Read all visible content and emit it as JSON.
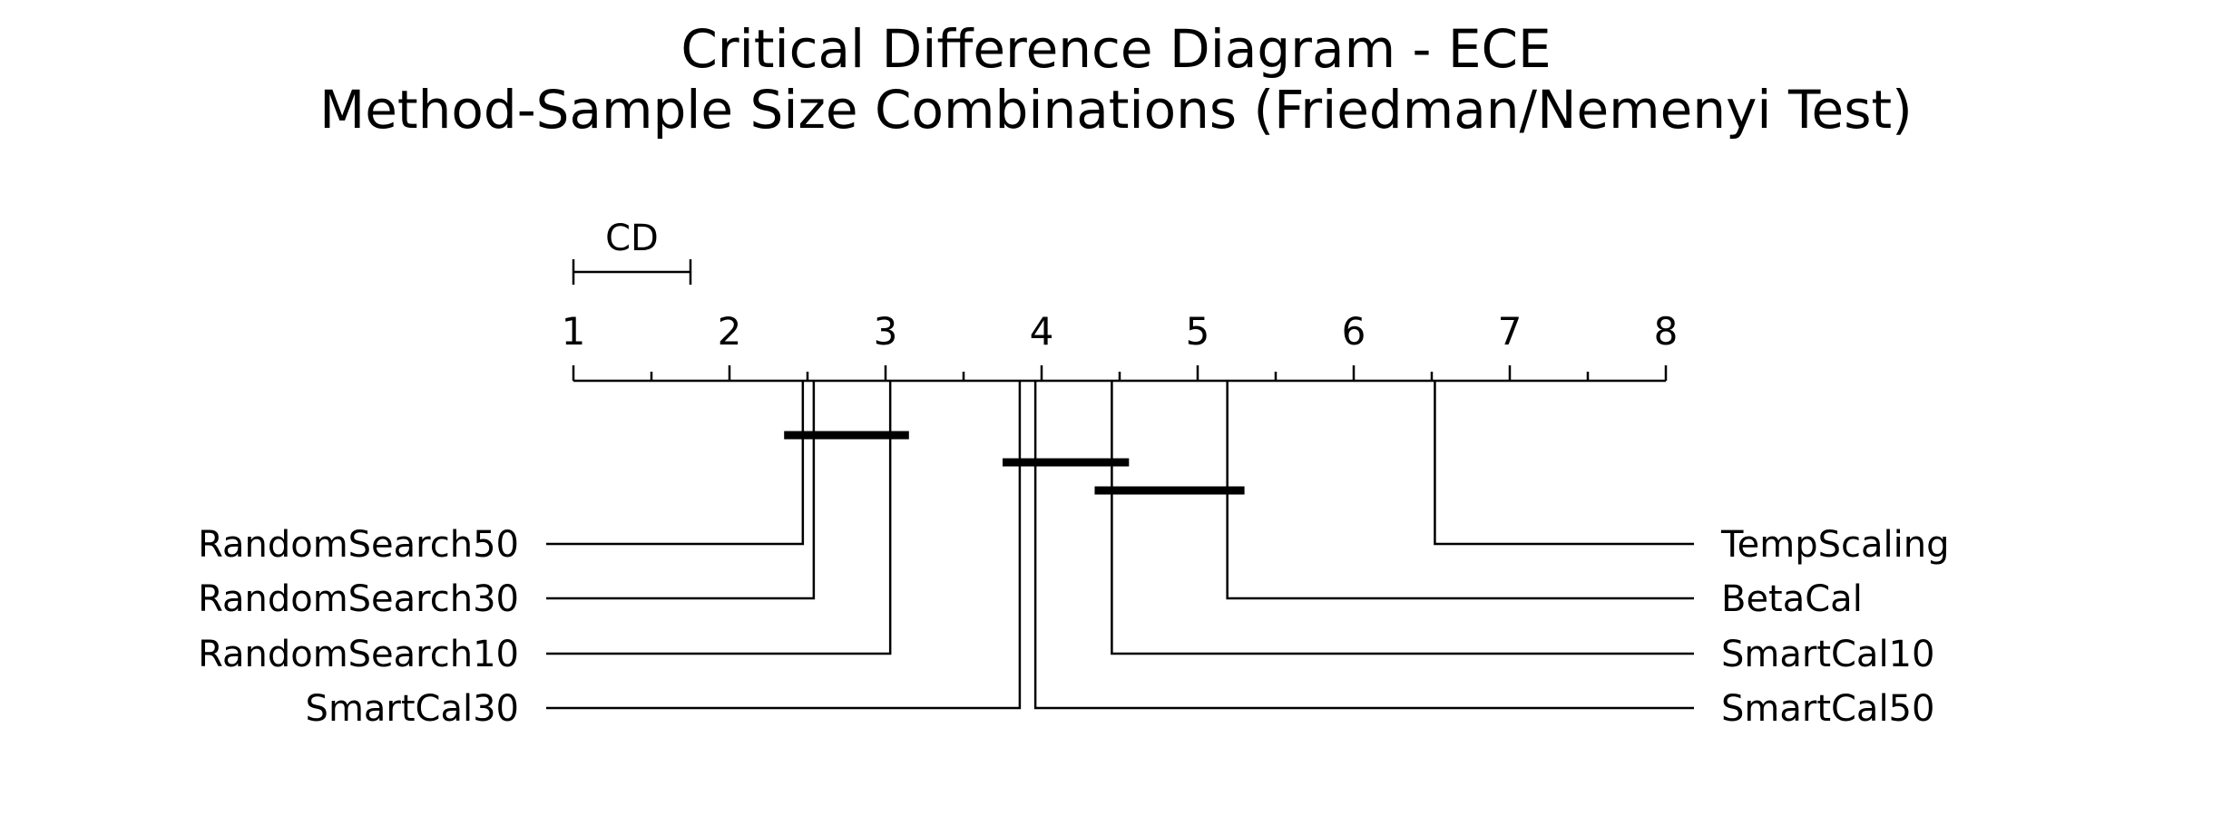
{
  "chart_data": {
    "type": "critical-difference",
    "title": "Critical Difference Diagram - ECE",
    "subtitle": "Method-Sample Size Combinations (Friedman/Nemenyi Test)",
    "axis": {
      "min": 1,
      "max": 8,
      "ticks": [
        "1",
        "2",
        "3",
        "4",
        "5",
        "6",
        "7",
        "8"
      ]
    },
    "cd": {
      "label": "CD",
      "value": 0.75
    },
    "methods": [
      {
        "name": "RandomSearch50",
        "rank": 2.47,
        "side": "left"
      },
      {
        "name": "RandomSearch30",
        "rank": 2.54,
        "side": "left"
      },
      {
        "name": "RandomSearch10",
        "rank": 3.03,
        "side": "left"
      },
      {
        "name": "SmartCal30",
        "rank": 3.86,
        "side": "left"
      },
      {
        "name": "SmartCal50",
        "rank": 3.96,
        "side": "right"
      },
      {
        "name": "SmartCal10",
        "rank": 4.45,
        "side": "right"
      },
      {
        "name": "BetaCal",
        "rank": 5.19,
        "side": "right"
      },
      {
        "name": "TempScaling",
        "rank": 6.52,
        "side": "right"
      }
    ],
    "cliques": [
      {
        "start": 2.35,
        "end": 3.15
      },
      {
        "start": 3.75,
        "end": 4.56
      },
      {
        "start": 4.34,
        "end": 5.3
      }
    ]
  }
}
